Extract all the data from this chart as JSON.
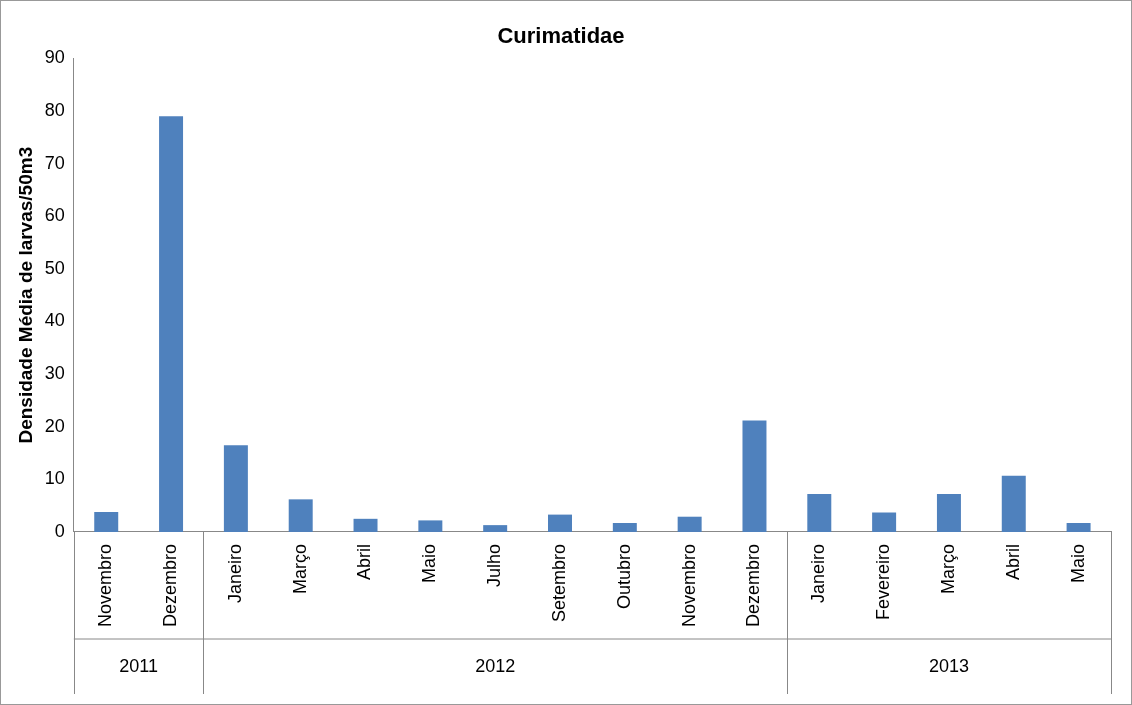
{
  "chart_data": {
    "type": "bar",
    "title": "Curimatidae",
    "ylabel": "Densidade Média de larvas/50m3",
    "categories": [
      "Novembro",
      "Dezembro",
      "Janeiro",
      "Março",
      "Abril",
      "Maio",
      "Julho",
      "Setembro",
      "Outubro",
      "Novembro",
      "Dezembro",
      "Janeiro",
      "Fevereiro",
      "Março",
      "Abril",
      "Maio"
    ],
    "values": [
      3.8,
      79,
      16.5,
      6.2,
      2.5,
      2.2,
      1.3,
      3.3,
      1.7,
      2.9,
      21.2,
      7.2,
      3.7,
      7.2,
      10.7,
      1.7
    ],
    "color": "#4f81bd",
    "ylim": [
      0,
      90
    ],
    "yticks": [
      0,
      10,
      20,
      30,
      40,
      50,
      60,
      70,
      80,
      90
    ],
    "grid": false,
    "legend": false,
    "annotations": [
      "2011",
      "2012",
      "2013"
    ]
  }
}
